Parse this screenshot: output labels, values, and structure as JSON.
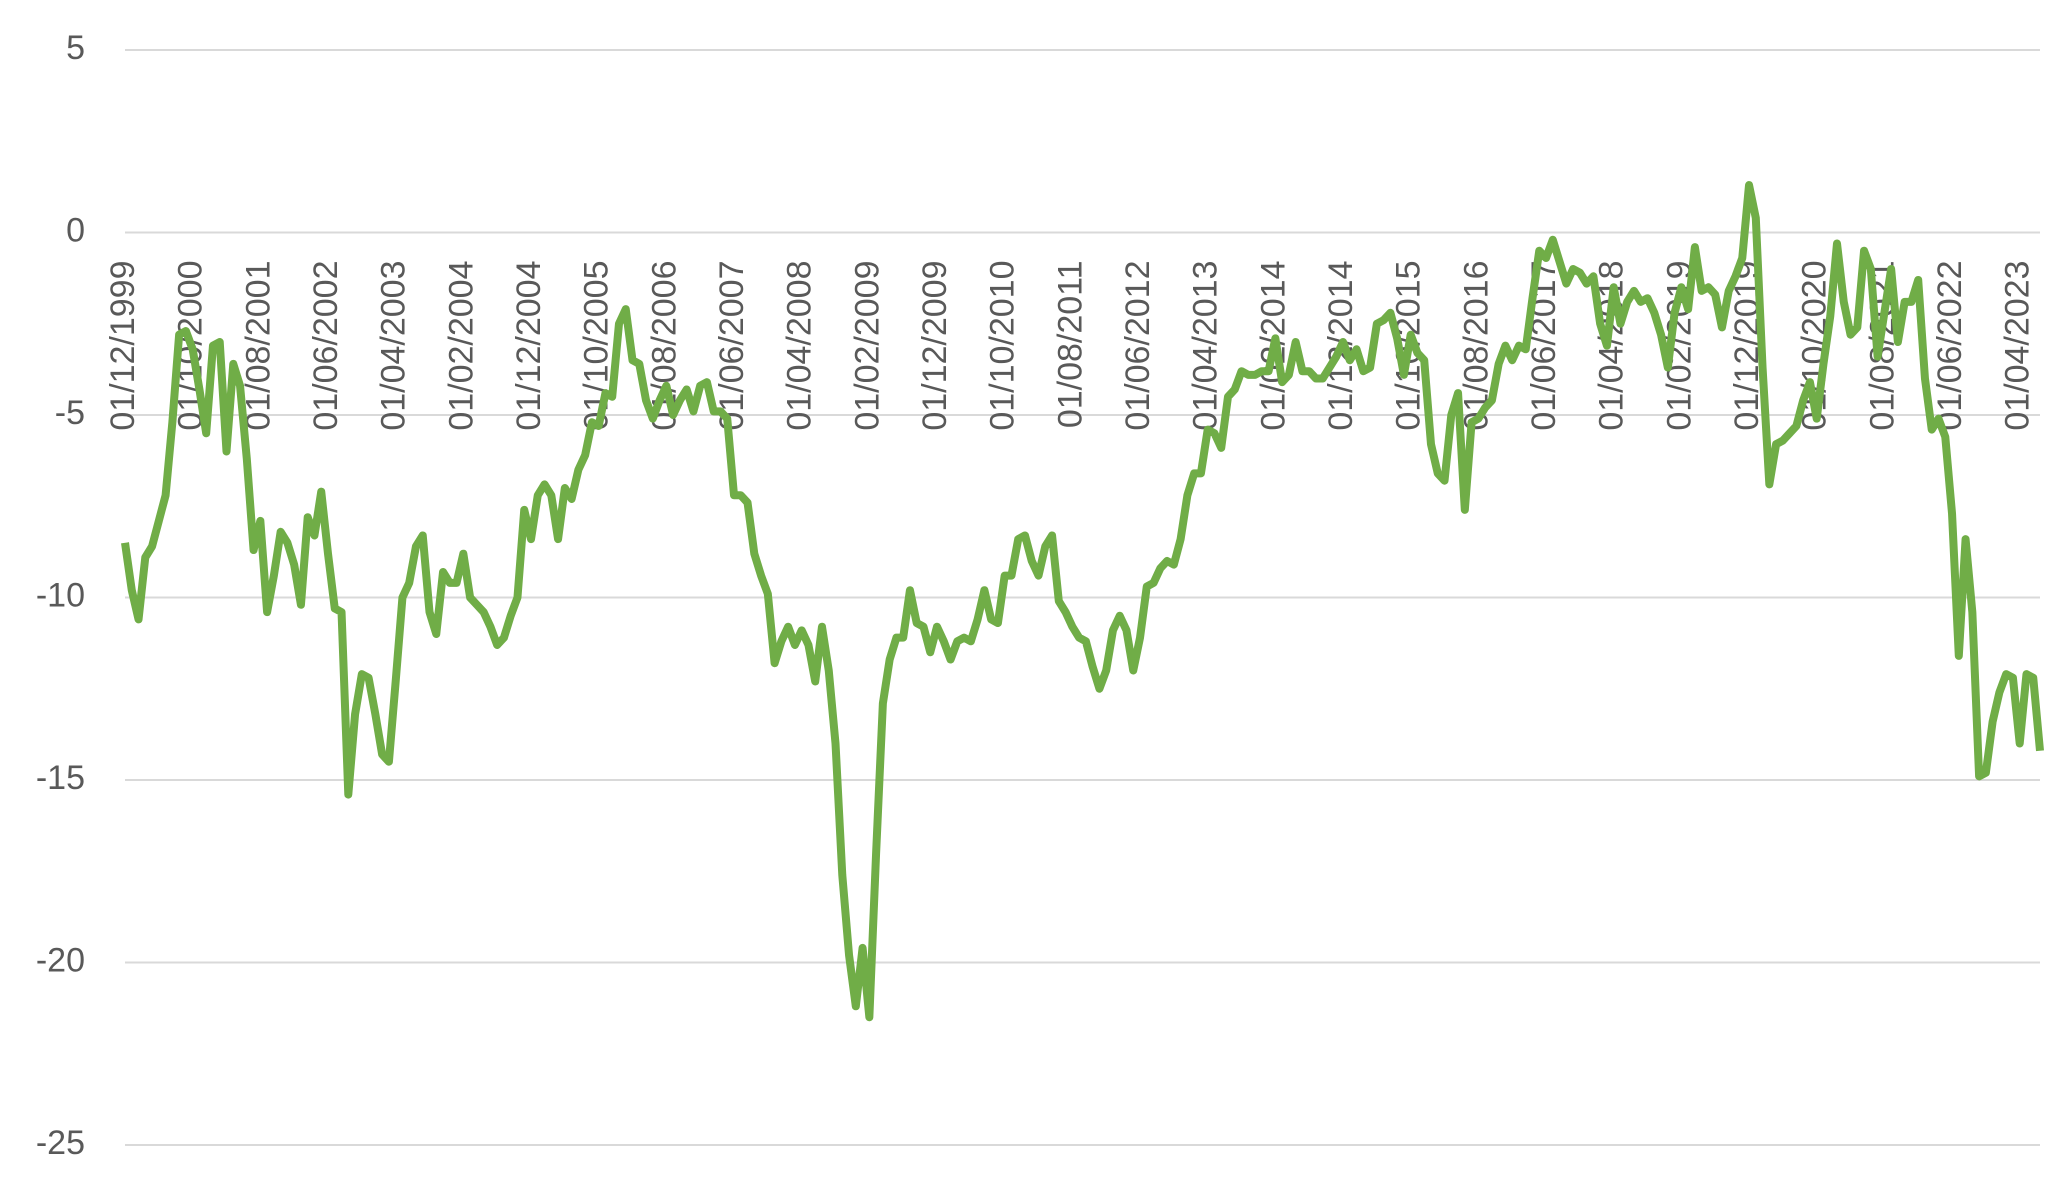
{
  "chart_data": {
    "type": "line",
    "categories": [
      "01/12/1999",
      null,
      null,
      null,
      null,
      null,
      null,
      null,
      null,
      null,
      "01/10/2000",
      null,
      null,
      null,
      null,
      null,
      null,
      null,
      null,
      null,
      "01/08/2001",
      null,
      null,
      null,
      null,
      null,
      null,
      null,
      null,
      null,
      "01/06/2002",
      null,
      null,
      null,
      null,
      null,
      null,
      null,
      null,
      null,
      "01/04/2003",
      null,
      null,
      null,
      null,
      null,
      null,
      null,
      null,
      null,
      "01/02/2004",
      null,
      null,
      null,
      null,
      null,
      null,
      null,
      null,
      null,
      "01/12/2004",
      null,
      null,
      null,
      null,
      null,
      null,
      null,
      null,
      null,
      "01/10/2005",
      null,
      null,
      null,
      null,
      null,
      null,
      null,
      null,
      null,
      "01/08/2006",
      null,
      null,
      null,
      null,
      null,
      null,
      null,
      null,
      null,
      "01/06/2007",
      null,
      null,
      null,
      null,
      null,
      null,
      null,
      null,
      null,
      "01/04/2008",
      null,
      null,
      null,
      null,
      null,
      null,
      null,
      null,
      null,
      "01/02/2009",
      null,
      null,
      null,
      null,
      null,
      null,
      null,
      null,
      null,
      "01/12/2009",
      null,
      null,
      null,
      null,
      null,
      null,
      null,
      null,
      null,
      "01/10/2010",
      null,
      null,
      null,
      null,
      null,
      null,
      null,
      null,
      null,
      "01/08/2011",
      null,
      null,
      null,
      null,
      null,
      null,
      null,
      null,
      null,
      "01/06/2012",
      null,
      null,
      null,
      null,
      null,
      null,
      null,
      null,
      null,
      "01/04/2013",
      null,
      null,
      null,
      null,
      null,
      null,
      null,
      null,
      null,
      "01/02/2014",
      null,
      null,
      null,
      null,
      null,
      null,
      null,
      null,
      null,
      "01/12/2014",
      null,
      null,
      null,
      null,
      null,
      null,
      null,
      null,
      null,
      "01/10/2015",
      null,
      null,
      null,
      null,
      null,
      null,
      null,
      null,
      null,
      "01/08/2016",
      null,
      null,
      null,
      null,
      null,
      null,
      null,
      null,
      null,
      "01/06/2017",
      null,
      null,
      null,
      null,
      null,
      null,
      null,
      null,
      null,
      "01/04/2018",
      null,
      null,
      null,
      null,
      null,
      null,
      null,
      null,
      null,
      "01/02/2019",
      null,
      null,
      null,
      null,
      null,
      null,
      null,
      null,
      null,
      "01/12/2019",
      null,
      null,
      null,
      null,
      null,
      null,
      null,
      null,
      null,
      "01/10/2020",
      null,
      null,
      null,
      null,
      null,
      null,
      null,
      null,
      null,
      "01/08/2021",
      null,
      null,
      null,
      null,
      null,
      null,
      null,
      null,
      null,
      "01/06/2022",
      null,
      null,
      null,
      null,
      null,
      null,
      null,
      null,
      null,
      "01/04/2023",
      null,
      null,
      null
    ],
    "values": [
      -8.5,
      -9.8,
      -10.6,
      -8.9,
      -8.6,
      -7.9,
      -7.2,
      -5.2,
      -2.8,
      -2.7,
      -3.2,
      -4.3,
      -5.5,
      -3.1,
      -3.0,
      -6.0,
      -3.6,
      -4.2,
      -6.2,
      -8.7,
      -7.9,
      -10.4,
      -9.4,
      -8.2,
      -8.5,
      -9.1,
      -10.2,
      -7.8,
      -8.3,
      -7.1,
      -8.8,
      -10.3,
      -10.4,
      -15.4,
      -13.2,
      -12.1,
      -12.2,
      -13.2,
      -14.3,
      -14.5,
      -12.3,
      -10.0,
      -9.6,
      -8.6,
      -8.3,
      -10.4,
      -11.0,
      -9.3,
      -9.6,
      -9.6,
      -8.8,
      -10.0,
      -10.2,
      -10.4,
      -10.8,
      -11.3,
      -11.1,
      -10.5,
      -10.0,
      -7.6,
      -8.4,
      -7.2,
      -6.9,
      -7.2,
      -8.4,
      -7.0,
      -7.3,
      -6.5,
      -6.1,
      -5.2,
      -5.3,
      -4.4,
      -4.5,
      -2.5,
      -2.1,
      -3.5,
      -3.6,
      -4.6,
      -5.1,
      -4.6,
      -4.2,
      -5.0,
      -4.6,
      -4.3,
      -4.9,
      -4.2,
      -4.1,
      -4.9,
      -4.9,
      -5.1,
      -7.2,
      -7.2,
      -7.4,
      -8.8,
      -9.4,
      -9.9,
      -11.8,
      -11.2,
      -10.8,
      -11.3,
      -10.9,
      -11.3,
      -12.3,
      -10.8,
      -12.0,
      -14.0,
      -17.6,
      -19.8,
      -21.2,
      -19.6,
      -21.5,
      -17.0,
      -12.9,
      -11.7,
      -11.1,
      -11.1,
      -9.8,
      -10.7,
      -10.8,
      -11.5,
      -10.8,
      -11.2,
      -11.7,
      -11.2,
      -11.1,
      -11.2,
      -10.6,
      -9.8,
      -10.6,
      -10.7,
      -9.4,
      -9.4,
      -8.4,
      -8.3,
      -9.0,
      -9.4,
      -8.6,
      -8.3,
      -10.1,
      -10.4,
      -10.8,
      -11.1,
      -11.2,
      -11.9,
      -12.5,
      -12.0,
      -10.9,
      -10.5,
      -10.9,
      -12.0,
      -11.1,
      -9.7,
      -9.6,
      -9.2,
      -9.0,
      -9.1,
      -8.4,
      -7.2,
      -6.6,
      -6.6,
      -5.4,
      -5.5,
      -5.9,
      -4.5,
      -4.3,
      -3.8,
      -3.9,
      -3.9,
      -3.8,
      -3.8,
      -2.9,
      -4.1,
      -3.9,
      -3.0,
      -3.8,
      -3.8,
      -4.0,
      -4.0,
      -3.7,
      -3.4,
      -3.0,
      -3.5,
      -3.2,
      -3.8,
      -3.7,
      -2.5,
      -2.4,
      -2.2,
      -2.9,
      -3.9,
      -2.8,
      -3.3,
      -3.5,
      -5.8,
      -6.6,
      -6.8,
      -5.0,
      -4.4,
      -7.6,
      -5.2,
      -5.1,
      -4.8,
      -4.6,
      -3.6,
      -3.1,
      -3.5,
      -3.1,
      -3.2,
      -1.8,
      -0.5,
      -0.7,
      -0.2,
      -0.8,
      -1.4,
      -1.0,
      -1.1,
      -1.4,
      -1.2,
      -2.5,
      -3.1,
      -1.5,
      -2.5,
      -1.9,
      -1.6,
      -1.9,
      -1.8,
      -2.2,
      -2.8,
      -3.7,
      -2.2,
      -1.5,
      -2.1,
      -0.4,
      -1.6,
      -1.5,
      -1.7,
      -2.6,
      -1.6,
      -1.2,
      -0.7,
      1.3,
      0.4,
      -3.7,
      -6.9,
      -5.8,
      -5.7,
      -5.5,
      -5.3,
      -4.6,
      -4.1,
      -5.1,
      -3.6,
      -2.3,
      -0.3,
      -1.9,
      -2.8,
      -2.6,
      -0.5,
      -1.0,
      -3.4,
      -2.2,
      -1.0,
      -3.0,
      -1.9,
      -1.9,
      -1.3,
      -4.0,
      -5.4,
      -5.1,
      -5.6,
      -7.7,
      -11.6,
      -8.4,
      -10.4,
      -14.9,
      -14.8,
      -13.4,
      -12.6,
      -12.1,
      -12.2,
      -14.0,
      -12.1,
      -12.2,
      -14.2
    ],
    "color": "#70ad47",
    "ylim": [
      -25,
      5
    ],
    "yticks": [
      5,
      0,
      -5,
      -10,
      -15,
      -20,
      -25
    ],
    "grid": true
  }
}
